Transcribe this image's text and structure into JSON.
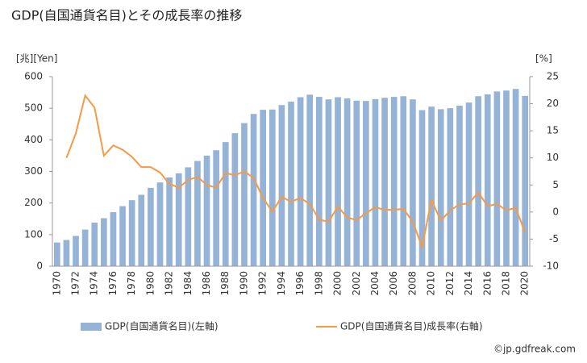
{
  "chart_data": {
    "type": "bar-line",
    "title": "GDP(自国通貨名目)とその成長率の推移",
    "ylabel": "[兆][Yen]",
    "y2label": "[%]",
    "source": "©jp.gdfreak.com",
    "categories": [
      "1970",
      null,
      "1972",
      null,
      "1974",
      null,
      "1976",
      null,
      "1978",
      null,
      "1980",
      null,
      "1982",
      null,
      "1984",
      null,
      "1986",
      null,
      "1988",
      null,
      "1990",
      null,
      "1992",
      null,
      "1994",
      null,
      "1996",
      null,
      "1998",
      null,
      "2000",
      null,
      "2002",
      null,
      "2004",
      null,
      "2006",
      null,
      "2008",
      null,
      "2010",
      null,
      "2012",
      null,
      "2014",
      null,
      "2016",
      null,
      "2018",
      null,
      "2020"
    ],
    "series": [
      {
        "name": "GDP(自国通貨名目)(左軸)",
        "color": "#95b3d7",
        "kind": "bar",
        "values": [
          75,
          83,
          96,
          116,
          138,
          152,
          171,
          190,
          209,
          226,
          248,
          265,
          281,
          294,
          313,
          333,
          350,
          367,
          393,
          421,
          453,
          482,
          495,
          496,
          510,
          521,
          535,
          543,
          536,
          528,
          535,
          531,
          524,
          523,
          529,
          533,
          536,
          538,
          528,
          494,
          505,
          497,
          500,
          508,
          518,
          538,
          544,
          553,
          556,
          561,
          539
        ]
      },
      {
        "name": "GDP(自国通貨名目)成長率(右軸)",
        "color": "#f59a45",
        "kind": "line",
        "axis": "y2",
        "values": [
          null,
          10.0,
          14.5,
          21.5,
          19.3,
          10.4,
          12.3,
          11.5,
          10.2,
          8.3,
          8.3,
          7.3,
          5.2,
          4.5,
          5.9,
          6.5,
          5.0,
          4.5,
          7.2,
          6.8,
          7.5,
          6.3,
          2.6,
          0.1,
          2.8,
          1.9,
          2.6,
          1.5,
          -1.4,
          -1.8,
          1.0,
          -1.0,
          -1.5,
          -0.2,
          0.9,
          0.4,
          0.4,
          0.6,
          -1.8,
          -6.4,
          2.2,
          -1.6,
          0.3,
          1.4,
          1.6,
          3.6,
          1.1,
          1.5,
          0.3,
          0.8,
          -3.8
        ]
      }
    ],
    "ylim": [
      0,
      600
    ],
    "yticks": [
      0,
      100,
      200,
      300,
      400,
      500,
      600
    ],
    "y2lim": [
      -10,
      25
    ],
    "y2ticks": [
      -10,
      -5,
      0,
      5,
      10,
      15,
      20,
      25
    ],
    "grid": false
  }
}
